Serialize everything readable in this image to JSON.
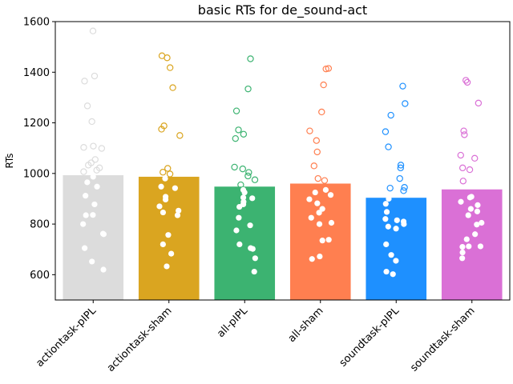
{
  "chart_data": {
    "type": "bar",
    "title": "basic RTs for de_sound-act",
    "xlabel": "",
    "ylabel": "RTs",
    "ylim": [
      500,
      1600
    ],
    "yticks": [
      600,
      800,
      1000,
      1200,
      1400,
      1600
    ],
    "grid": false,
    "categories": [
      "actiontask-pIPL",
      "actiontask-sham",
      "all-pIPL",
      "all-sham",
      "soundtask-pIPL",
      "soundtask-sham"
    ],
    "values": [
      993,
      987,
      948,
      960,
      904,
      937
    ],
    "colors": [
      "#dcdcdc",
      "#daa520",
      "#3cb371",
      "#ff7f50",
      "#1e90ff",
      "#da70d6"
    ],
    "points": [
      [
        1563,
        1385,
        1365,
        1267,
        1205,
        1108,
        1103,
        1099,
        1055,
        1042,
        1033,
        1022,
        1013,
        1007,
        987,
        965,
        948,
        912,
        878,
        836,
        835,
        800,
        762,
        760,
        705,
        652,
        620
      ],
      [
        1465,
        1457,
        1418,
        1339,
        1188,
        1175,
        1150,
        1020,
        1005,
        998,
        980,
        948,
        942,
        908,
        897,
        870,
        853,
        846,
        835,
        757,
        720,
        683,
        633
      ],
      [
        1453,
        1334,
        1247,
        1172,
        1155,
        1138,
        1025,
        1018,
        1004,
        990,
        975,
        955,
        935,
        925,
        905,
        902,
        888,
        878,
        868,
        825,
        795,
        775,
        720,
        705,
        702,
        665,
        612
      ],
      [
        1415,
        1413,
        1350,
        1243,
        1168,
        1130,
        1085,
        1030,
        980,
        972,
        935,
        925,
        915,
        898,
        882,
        860,
        845,
        825,
        805,
        800,
        738,
        735,
        672,
        662
      ],
      [
        1345,
        1276,
        1230,
        1165,
        1105,
        1033,
        1022,
        980,
        945,
        942,
        932,
        900,
        880,
        848,
        820,
        815,
        810,
        800,
        790,
        782,
        720,
        678,
        655,
        612,
        602
      ],
      [
        1368,
        1360,
        1278,
        1168,
        1153,
        1072,
        1060,
        1022,
        1015,
        970,
        908,
        905,
        888,
        875,
        860,
        850,
        835,
        805,
        798,
        760,
        740,
        712,
        710,
        712,
        688,
        665
      ]
    ]
  }
}
